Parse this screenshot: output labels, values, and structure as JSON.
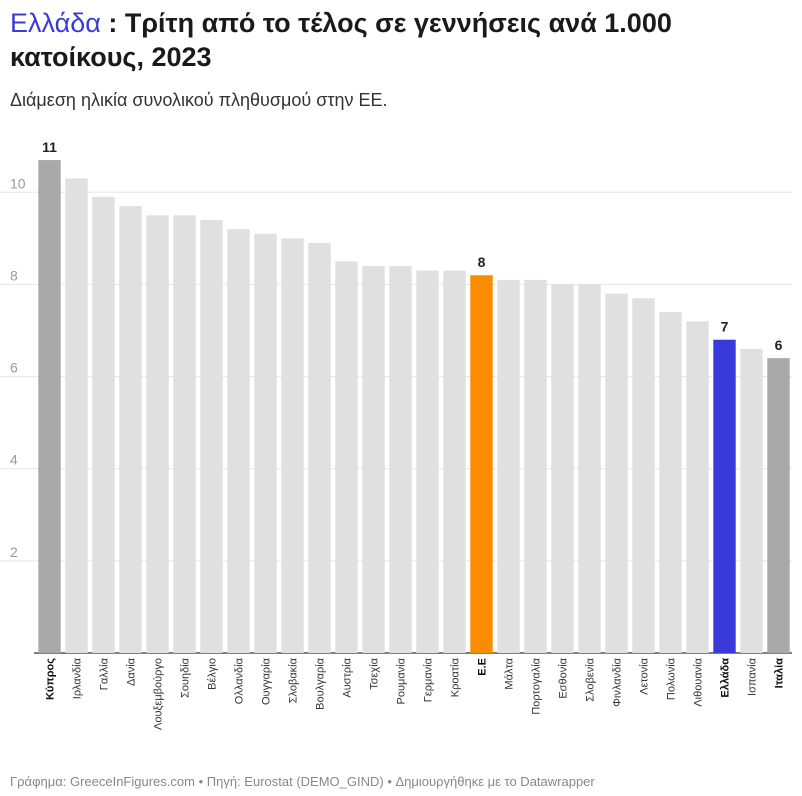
{
  "title_highlight": "Ελλάδα",
  "title_rest": " : Τρίτη από το τέλος σε γεννήσεις ανά 1.000 κατοίκους, 2023",
  "subtitle": "Διάμεση ηλικία συνολικού πληθυσμού στην ΕΕ.",
  "footer": "Γράφημα: GreeceInFigures.com • Πηγή: Eurostat (DEMO_GIND) • Δημιουργήθηκε με το Datawrapper",
  "colors": {
    "default": "#e0e0e0",
    "highlight_gray": "#a9a9a9",
    "eu": "#fb8c00",
    "greece": "#3a3adb",
    "grid": "#e6e6e6",
    "axis": "#333333"
  },
  "chart_data": {
    "type": "bar",
    "categories": [
      "Κύπρος",
      "Ιρλανδία",
      "Γαλλία",
      "Δανία",
      "Λουξεμβούργο",
      "Σουηδία",
      "Βέλγιο",
      "Ολλανδία",
      "Ουγγαρία",
      "Σλοβακία",
      "Βουλγαρία",
      "Αυστρία",
      "Τσεχία",
      "Ρουμανία",
      "Γερμανία",
      "Κροατία",
      "Ε.Ε",
      "Μάλτα",
      "Πορτογαλία",
      "Εσθονία",
      "Σλοβενία",
      "Φινλανδία",
      "Λετονία",
      "Πολωνία",
      "Λιθουανία",
      "Ελλάδα",
      "Ισπανία",
      "Ιταλία"
    ],
    "values": [
      10.7,
      10.3,
      9.9,
      9.7,
      9.5,
      9.5,
      9.4,
      9.2,
      9.1,
      9.0,
      8.9,
      8.5,
      8.4,
      8.4,
      8.3,
      8.3,
      8.2,
      8.1,
      8.1,
      8.0,
      8.0,
      7.8,
      7.7,
      7.4,
      7.2,
      6.8,
      6.6,
      6.4
    ],
    "value_labels": {
      "0": "11",
      "16": "8",
      "25": "7",
      "27": "6"
    },
    "bar_colors": {
      "0": "highlight_gray",
      "16": "eu",
      "25": "greece",
      "27": "highlight_gray"
    },
    "bold_categories": [
      0,
      16,
      25,
      27
    ],
    "ylim": [
      0,
      11.2
    ],
    "yticks": [
      2,
      4,
      6,
      8,
      10
    ],
    "grid": true
  }
}
